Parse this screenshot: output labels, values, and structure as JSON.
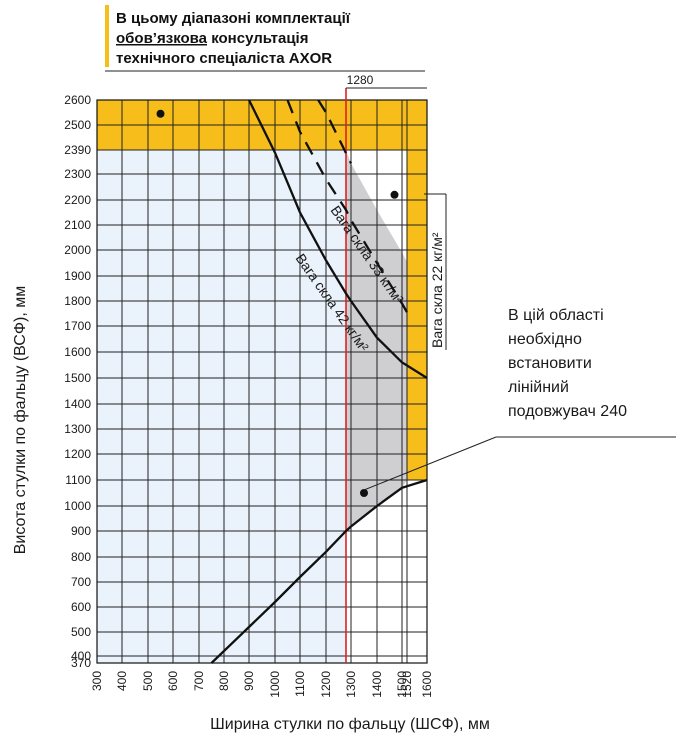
{
  "colors": {
    "yellow": "#f7bd1a",
    "light_blue": "#eaf3fb",
    "gray": "#cfcfd1",
    "red": "#e02020",
    "grid": "#222222"
  },
  "header": {
    "line1": "В цьому діапазоні комплектації",
    "line2_underlined": "обов’язкова",
    "line2_rest": " консультація",
    "line3": "технічного спеціаліста AXOR"
  },
  "annotation": {
    "lines": [
      "В цій області",
      "необхідно",
      "встановити",
      "лінійний",
      "подовжувач 240"
    ]
  },
  "chart_data": {
    "type": "line",
    "xlabel": "Ширина стулки по фальцу (ШСФ), мм",
    "ylabel": "Висота стулки по фальцу (ВСФ), мм",
    "x_ticks": [
      300,
      400,
      500,
      600,
      700,
      800,
      900,
      1000,
      1100,
      1200,
      1300,
      1400,
      1500,
      1520,
      1600
    ],
    "x_tick_labels": [
      "300",
      "400",
      "500",
      "600",
      "700",
      "800",
      "900",
      "1000",
      "1100",
      "1200",
      "1300",
      "1400",
      "1500",
      "1520",
      "1600"
    ],
    "y_ticks": [
      370,
      400,
      500,
      600,
      700,
      800,
      900,
      1000,
      1100,
      1200,
      1300,
      1400,
      1500,
      1600,
      1700,
      1800,
      1900,
      2000,
      2100,
      2200,
      2300,
      2390,
      2500,
      2600
    ],
    "y_tick_labels": [
      "370",
      "400",
      "500",
      "600",
      "700",
      "800",
      "900",
      "1000",
      "1100",
      "1200",
      "1300",
      "1400",
      "1500",
      "1600",
      "1700",
      "1800",
      "1900",
      "2000",
      "2100",
      "2200",
      "2300",
      "2390",
      "2500",
      "2600"
    ],
    "xlim": [
      300,
      1600
    ],
    "ylim": [
      370,
      2600
    ],
    "reference_line": {
      "x": 1280,
      "label": "1280"
    },
    "series": [
      {
        "name": "Вага скла 42 кг/м²",
        "style": "solid",
        "points": [
          [
            900,
            2600
          ],
          [
            1000,
            2380
          ],
          [
            1100,
            2150
          ],
          [
            1200,
            1960
          ],
          [
            1280,
            1830
          ],
          [
            1300,
            1800
          ],
          [
            1400,
            1655
          ],
          [
            1500,
            1560
          ],
          [
            1600,
            1500
          ]
        ]
      },
      {
        "name": "Вага скла 33 кг/м²",
        "style": "dashed",
        "points": [
          [
            1050,
            2600
          ],
          [
            1100,
            2470
          ],
          [
            1200,
            2280
          ],
          [
            1280,
            2160
          ],
          [
            1300,
            2120
          ],
          [
            1400,
            1950
          ],
          [
            1500,
            1790
          ],
          [
            1520,
            1755
          ]
        ]
      },
      {
        "name": "Вага скла 22 кг/м²",
        "style": "dashed",
        "points": [
          [
            1170,
            2600
          ],
          [
            1200,
            2550
          ],
          [
            1300,
            2340
          ]
        ]
      },
      {
        "name": "",
        "style": "solid",
        "points": [
          [
            750,
            370
          ],
          [
            900,
            520
          ],
          [
            1000,
            620
          ],
          [
            1100,
            720
          ],
          [
            1200,
            820
          ],
          [
            1280,
            900
          ],
          [
            1300,
            918
          ],
          [
            1400,
            1000
          ],
          [
            1500,
            1070
          ],
          [
            1600,
            1100
          ]
        ]
      }
    ],
    "regions": [
      {
        "name": "consultation-zone-top",
        "color": "yellow",
        "x": [
          300,
          1600
        ],
        "y": [
          2390,
          2600
        ]
      },
      {
        "name": "consultation-zone-right",
        "color": "yellow",
        "x": [
          1520,
          1600
        ],
        "y": [
          1100,
          2390
        ]
      },
      {
        "name": "standard-zone",
        "color": "light_blue",
        "x": [
          300,
          1280
        ],
        "y": [
          370,
          2390
        ]
      },
      {
        "name": "extension-zone",
        "color": "gray"
      }
    ],
    "markers": [
      {
        "x": 550,
        "y": 2545
      },
      {
        "x": 1470,
        "y": 2220
      },
      {
        "x": 1350,
        "y": 1050
      }
    ],
    "curve_labels": [
      {
        "text": "Вага скла 42 кг/м²"
      },
      {
        "text": "Вага скла 33 кг/м²"
      },
      {
        "text": "Вага скла 22 кг/м²"
      }
    ]
  }
}
